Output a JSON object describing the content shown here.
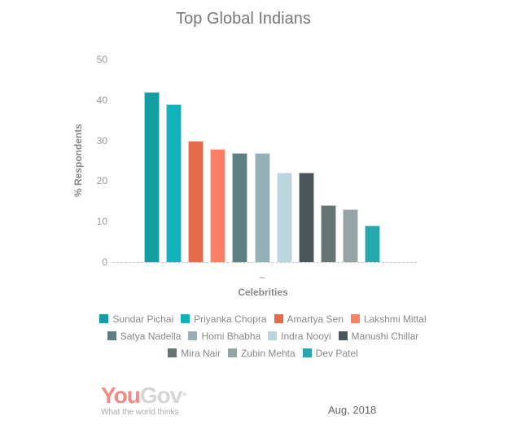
{
  "chart_data": {
    "type": "bar",
    "title": "Top Global Indians",
    "xlabel": "Celebrities",
    "ylabel": "% Respondents",
    "ylim": [
      0,
      50
    ],
    "yticks": [
      0,
      10,
      20,
      30,
      40,
      50
    ],
    "xtick_labels": [
      "–"
    ],
    "grid": false,
    "legend_position": "bottom",
    "categories": [
      "Sundar Pichai",
      "Priyanka Chopra",
      "Amartya Sen",
      "Lakshmi Mittal",
      "Satya Nadella",
      "Homi Bhabha",
      "Indra Nooyi",
      "Manushi Chillar",
      "Mira Nair",
      "Zubin Mehta",
      "Dev Patel"
    ],
    "values": [
      42,
      39,
      30,
      28,
      27,
      27,
      22,
      22,
      14,
      13,
      9
    ],
    "series": [
      {
        "name": "Sundar Pichai",
        "values": [
          42
        ],
        "color": "#129ea2"
      },
      {
        "name": "Priyanka Chopra",
        "values": [
          39
        ],
        "color": "#10b3bb"
      },
      {
        "name": "Amartya Sen",
        "values": [
          30
        ],
        "color": "#e66a4c"
      },
      {
        "name": "Lakshmi Mittal",
        "values": [
          28
        ],
        "color": "#fa8066"
      },
      {
        "name": "Satya Nadella",
        "values": [
          27
        ],
        "color": "#5e7e81"
      },
      {
        "name": "Homi Bhabha",
        "values": [
          27
        ],
        "color": "#95b1b5"
      },
      {
        "name": "Indra Nooyi",
        "values": [
          22
        ],
        "color": "#b8d6dc"
      },
      {
        "name": "Manushi Chillar",
        "values": [
          22
        ],
        "color": "#4a5659"
      },
      {
        "name": "Mira Nair",
        "values": [
          14
        ],
        "color": "#667574"
      },
      {
        "name": "Zubin Mehta",
        "values": [
          13
        ],
        "color": "#96a3a4"
      },
      {
        "name": "Dev Patel",
        "values": [
          9
        ],
        "color": "#24a9ac"
      }
    ]
  },
  "header": {
    "title": "Top Global Indians"
  },
  "axes": {
    "y_label": "% Respondents",
    "x_label": "Celebrities",
    "x_tick": "–",
    "y_ticks": [
      "0",
      "10",
      "20",
      "30",
      "40",
      "50"
    ]
  },
  "legend": {
    "rows": [
      [
        {
          "label": "Sundar Pichai",
          "color": "#129ea2"
        },
        {
          "label": "Priyanka Chopra",
          "color": "#10b3bb"
        },
        {
          "label": "Amartya Sen",
          "color": "#e66a4c"
        },
        {
          "label": "Lakshmi Mittal",
          "color": "#fa8066"
        }
      ],
      [
        {
          "label": "Satya Nadella",
          "color": "#5e7e81"
        },
        {
          "label": "Homi Bhabha",
          "color": "#95b1b5"
        },
        {
          "label": "Indra Nooyi",
          "color": "#b8d6dc"
        },
        {
          "label": "Manushi Chillar",
          "color": "#4a5659"
        }
      ],
      [
        {
          "label": "Mira Nair",
          "color": "#667574"
        },
        {
          "label": "Zubin Mehta",
          "color": "#96a3a4"
        },
        {
          "label": "Dev Patel",
          "color": "#24a9ac"
        }
      ]
    ]
  },
  "footer": {
    "brand_you": "You",
    "brand_gov": "Gov",
    "brand_reg": "®",
    "tagline": "What the world thinks",
    "date": "Aug, 2018"
  }
}
